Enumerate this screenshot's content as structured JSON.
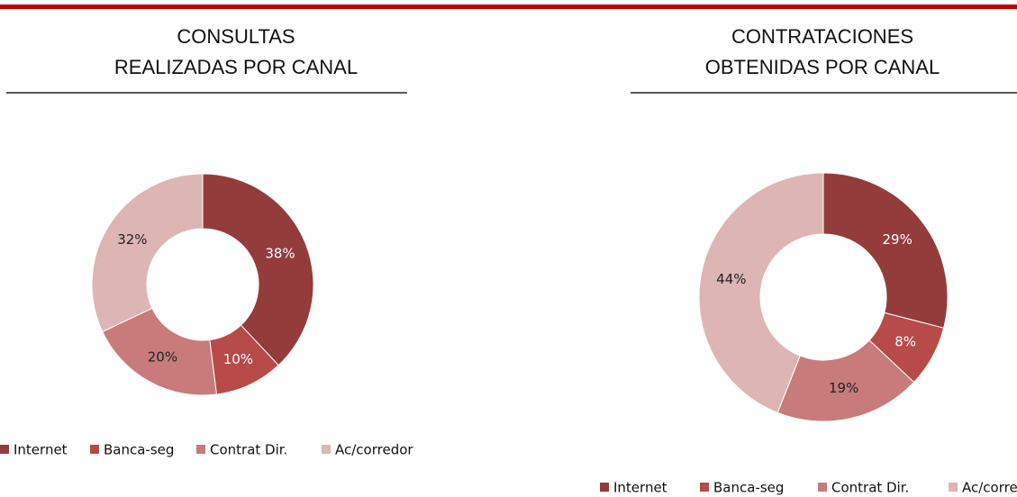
{
  "chart_data": [
    {
      "type": "pie",
      "title": [
        "CONSULTAS",
        "REALIZADAS POR CANAL"
      ],
      "categories": [
        "Internet",
        "Banca-seg",
        "Contrat Dir.",
        "Ac/corredor"
      ],
      "values": [
        38,
        10,
        20,
        32
      ],
      "value_labels": [
        "38%",
        "10%",
        "20%",
        "32%"
      ],
      "colors": [
        "#943c3c",
        "#b84a4a",
        "#c97b7b",
        "#deb5b5"
      ],
      "legend": "bottom"
    },
    {
      "type": "pie",
      "title": [
        "CONTRATACIONES",
        "OBTENIDAS POR CANAL"
      ],
      "categories": [
        "Internet",
        "Banca-seg",
        "Contrat Dir.",
        "Ac/corredor"
      ],
      "values": [
        29,
        8,
        19,
        44
      ],
      "value_labels": [
        "29%",
        "8%",
        "19%",
        "44%"
      ],
      "colors": [
        "#943c3c",
        "#b84a4a",
        "#c97b7b",
        "#deb5b5"
      ],
      "legend": "bottom"
    }
  ]
}
